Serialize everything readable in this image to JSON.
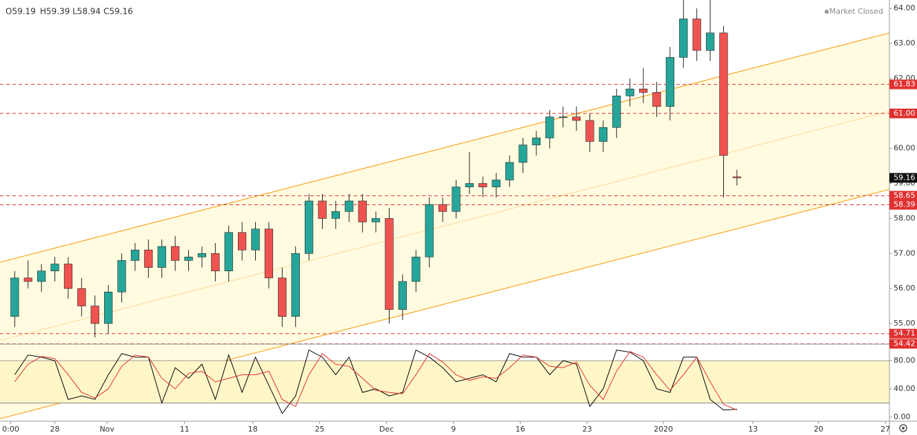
{
  "chart_data": [
    {
      "type": "candlestick",
      "header": [
        "O59.19",
        "H59.39",
        "L58.94",
        "C59.16"
      ],
      "status": "Market Closed",
      "up_color": "#26a69a",
      "down_color": "#ef5350",
      "xlim": [
        0.9,
        67.4
      ],
      "ylim": [
        54.41,
        64.24
      ],
      "yticks": [
        {
          "value": 55,
          "label": "55.00"
        },
        {
          "value": 56,
          "label": "56.00"
        },
        {
          "value": 57,
          "label": "57.00"
        },
        {
          "value": 58,
          "label": "58.00"
        },
        {
          "value": 59,
          "label": "59.00"
        },
        {
          "value": 60,
          "label": "60.00"
        },
        {
          "value": 61,
          "label": "61.00"
        },
        {
          "value": 62,
          "label": "62.00"
        },
        {
          "value": 63,
          "label": "63.00"
        },
        {
          "value": 64,
          "label": "64.00"
        }
      ],
      "x": [
        2,
        3,
        4,
        5,
        6,
        7,
        8,
        9,
        10,
        11,
        12,
        13,
        14,
        15,
        16,
        17,
        18,
        19,
        20,
        21,
        22,
        23,
        24,
        25,
        26,
        27,
        28,
        29,
        30,
        31,
        32,
        33,
        34,
        35,
        36,
        37,
        38,
        39,
        40,
        41,
        42,
        43,
        44,
        45,
        46,
        47,
        48,
        49,
        50,
        51,
        52,
        53,
        54,
        55,
        56
      ],
      "open": [
        55.2,
        56.3,
        56.2,
        56.5,
        56.7,
        56.0,
        55.5,
        55.0,
        55.9,
        56.8,
        57.1,
        56.6,
        57.2,
        56.8,
        56.9,
        57.0,
        56.5,
        57.6,
        57.1,
        57.7,
        56.3,
        55.2,
        57.0,
        58.5,
        58.0,
        58.2,
        58.5,
        57.9,
        58.0,
        55.4,
        56.2,
        56.9,
        58.4,
        58.2,
        58.9,
        59.0,
        58.9,
        59.1,
        59.6,
        60.1,
        60.3,
        60.9,
        60.9,
        60.8,
        60.2,
        60.6,
        61.5,
        61.7,
        61.6,
        61.2,
        62.6,
        63.7,
        62.8,
        63.3,
        59.19
      ],
      "high": [
        56.5,
        56.8,
        56.7,
        56.9,
        56.9,
        56.3,
        55.8,
        56.1,
        57.0,
        57.3,
        57.4,
        57.4,
        57.5,
        57.1,
        57.2,
        57.3,
        57.8,
        57.9,
        57.9,
        57.9,
        56.6,
        57.2,
        58.7,
        58.7,
        58.5,
        58.7,
        58.7,
        58.2,
        58.3,
        56.4,
        57.1,
        58.6,
        58.6,
        59.1,
        59.9,
        59.2,
        59.3,
        59.8,
        60.3,
        60.5,
        61.1,
        61.2,
        61.2,
        61.0,
        60.8,
        61.7,
        62.0,
        62.3,
        61.9,
        62.9,
        64.5,
        64.0,
        64.4,
        63.5,
        59.39
      ],
      "low": [
        54.9,
        56.0,
        55.9,
        56.2,
        55.7,
        55.2,
        54.6,
        54.7,
        55.6,
        56.5,
        56.3,
        56.3,
        56.5,
        56.5,
        56.6,
        56.2,
        56.2,
        56.8,
        56.8,
        56.0,
        54.9,
        54.9,
        56.8,
        57.7,
        57.7,
        57.9,
        57.6,
        57.6,
        55.0,
        55.1,
        55.9,
        56.6,
        57.9,
        58.0,
        58.7,
        58.6,
        58.6,
        58.9,
        59.3,
        59.8,
        60.0,
        60.6,
        60.5,
        59.9,
        59.9,
        60.3,
        61.2,
        61.3,
        60.9,
        60.8,
        62.3,
        62.5,
        62.5,
        58.6,
        58.94
      ],
      "close": [
        56.3,
        56.2,
        56.5,
        56.7,
        56.0,
        55.5,
        55.0,
        55.9,
        56.8,
        57.1,
        56.6,
        57.2,
        56.8,
        56.9,
        57.0,
        56.5,
        57.6,
        57.1,
        57.7,
        56.3,
        55.2,
        57.0,
        58.5,
        58.0,
        58.2,
        58.5,
        57.9,
        58.0,
        55.4,
        56.2,
        56.9,
        58.4,
        58.2,
        58.9,
        59.0,
        58.9,
        59.1,
        59.6,
        60.1,
        60.3,
        60.9,
        60.9,
        60.8,
        60.2,
        60.6,
        61.5,
        61.7,
        61.6,
        61.2,
        62.6,
        63.7,
        62.8,
        63.3,
        59.8,
        59.16
      ],
      "levels": [
        {
          "value": 61.83,
          "label": "61.83"
        },
        {
          "value": 61,
          "label": "61.00"
        },
        {
          "value": 58.65,
          "label": "58.65"
        },
        {
          "value": 58.39,
          "label": "58.39"
        },
        {
          "value": 54.71,
          "label": "54.71"
        },
        {
          "value": 54.42,
          "label": "54.42"
        }
      ],
      "level_color": "#e03030",
      "channel": {
        "upper": [
          56.75,
          63.3
        ],
        "lower": [
          52.28,
          58.83
        ],
        "color": "#f5a623",
        "fill": "#fffbe0"
      }
    },
    {
      "type": "stochastic",
      "xlim": [
        0.9,
        67.4
      ],
      "ylim": [
        -5.9,
        103.4
      ],
      "yticks": [
        {
          "value": 0,
          "label": "0.00"
        },
        {
          "value": 40,
          "label": "40.00"
        },
        {
          "value": 80,
          "label": "80.00"
        }
      ],
      "band": [
        20,
        80
      ],
      "band_fill": "#fff6c8",
      "xticks": [
        {
          "value": 1.7,
          "label": "0:00"
        },
        {
          "value": 5,
          "label": "28"
        },
        {
          "value": 8.9,
          "label": "Nov"
        },
        {
          "value": 14.7,
          "label": "11"
        },
        {
          "value": 19.8,
          "label": "18"
        },
        {
          "value": 24.8,
          "label": "25"
        },
        {
          "value": 29.8,
          "label": "Dec"
        },
        {
          "value": 34.8,
          "label": "9"
        },
        {
          "value": 39.8,
          "label": "16"
        },
        {
          "value": 44.8,
          "label": "23"
        },
        {
          "value": 50.5,
          "label": "2020"
        },
        {
          "value": 57.2,
          "label": "13"
        },
        {
          "value": 62.1,
          "label": "20"
        },
        {
          "value": 67.1,
          "label": "27"
        }
      ],
      "x": [
        2,
        3,
        4,
        5,
        6,
        7,
        8,
        9,
        10,
        11,
        12,
        13,
        14,
        15,
        16,
        17,
        18,
        19,
        20,
        21,
        22,
        23,
        24,
        25,
        26,
        27,
        28,
        29,
        30,
        31,
        32,
        33,
        34,
        35,
        36,
        37,
        38,
        39,
        40,
        41,
        42,
        43,
        44,
        45,
        46,
        47,
        48,
        49,
        50,
        51,
        52,
        53,
        54,
        55,
        56
      ],
      "series": [
        {
          "color": "#000000",
          "values": [
            60,
            88,
            85,
            80,
            25,
            30,
            25,
            60,
            90,
            85,
            85,
            20,
            70,
            55,
            75,
            25,
            88,
            35,
            85,
            45,
            5,
            30,
            95,
            85,
            60,
            85,
            35,
            40,
            30,
            35,
            95,
            85,
            70,
            50,
            55,
            60,
            50,
            90,
            85,
            85,
            60,
            80,
            75,
            15,
            40,
            95,
            92,
            80,
            40,
            35,
            85,
            85,
            25,
            10,
            11
          ]
        },
        {
          "color": "#e0302a",
          "values": [
            50,
            75,
            86,
            83,
            60,
            35,
            27,
            40,
            72,
            88,
            85,
            55,
            40,
            62,
            65,
            50,
            55,
            60,
            60,
            65,
            25,
            15,
            60,
            90,
            75,
            72,
            55,
            38,
            35,
            33,
            60,
            90,
            78,
            60,
            52,
            57,
            55,
            70,
            88,
            85,
            72,
            70,
            78,
            45,
            25,
            65,
            93,
            85,
            60,
            38,
            60,
            85,
            50,
            18,
            10
          ]
        }
      ]
    }
  ]
}
